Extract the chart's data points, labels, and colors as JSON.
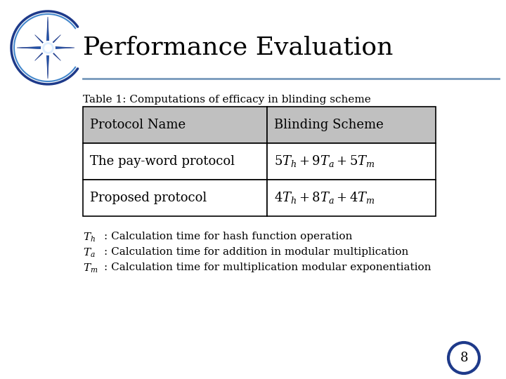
{
  "title": "Performance Evaluation",
  "subtitle": "Table 1: Computations of efficacy in blinding scheme",
  "header_row": [
    "Protocol Name",
    "Blinding Scheme"
  ],
  "data_rows": [
    [
      "The pay-word protocol",
      "$5T_h+ 9T_a+ 5T_m$"
    ],
    [
      "Proposed protocol",
      "$4T_h+ 8T_a+ 4T_m$"
    ]
  ],
  "footnotes": [
    [
      "$T_h$",
      ": Calculation time for hash function operation"
    ],
    [
      "$T_a$",
      ": Calculation time for addition in modular multiplication"
    ],
    [
      "$T_m$",
      ": Calculation time for multiplication modular exponentiation"
    ]
  ],
  "header_bg": "#C0C0C0",
  "table_border_color": "#000000",
  "bg_color": "#FFFFFF",
  "title_fontsize": 26,
  "subtitle_fontsize": 11,
  "table_fontsize": 13,
  "footnote_fontsize": 11,
  "page_number": "8",
  "divider_color": "#7799BB"
}
